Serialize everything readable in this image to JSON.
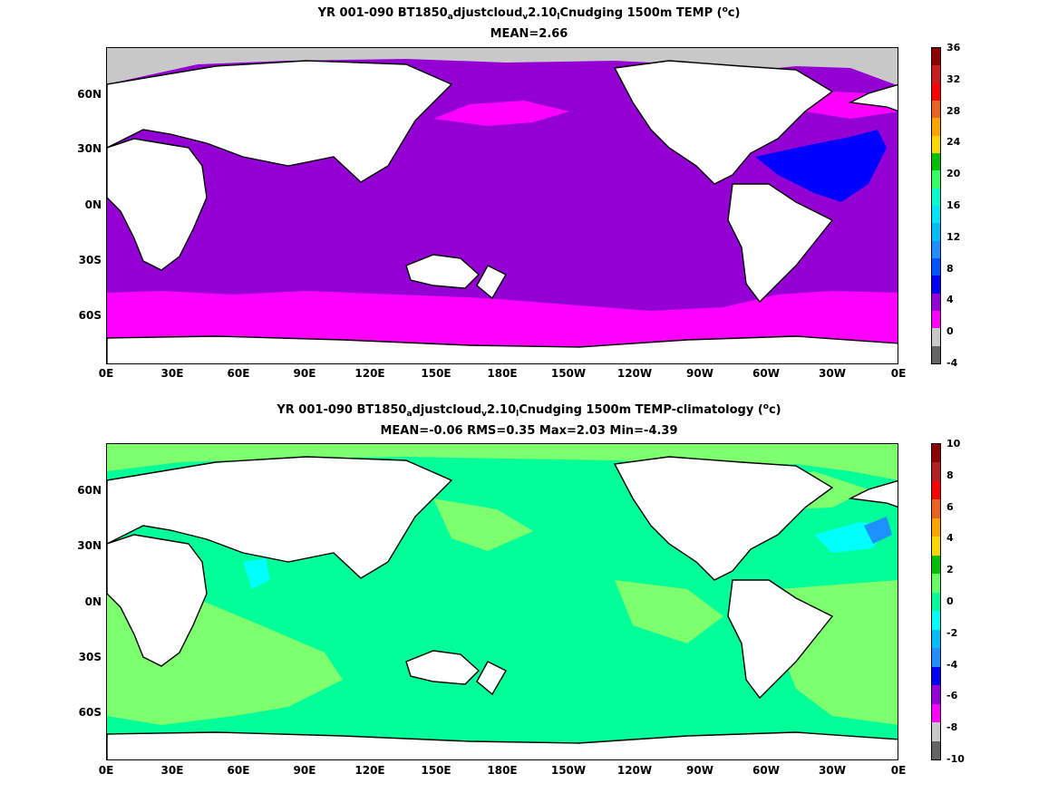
{
  "panel1": {
    "title_parts": [
      "YR 001-090 BT1850",
      "a",
      "djustcloud",
      "v",
      "2.10",
      "l",
      "Cnudging 1500m TEMP (",
      "o",
      "c)"
    ],
    "subtitle": "MEAN=2.66",
    "colorbar_labels": [
      "36",
      "32",
      "28",
      "24",
      "20",
      "16",
      "12",
      "8",
      "4",
      "0",
      "-4"
    ],
    "colorbar_colors": [
      "#8b0000",
      "#c81e1e",
      "#ff0000",
      "#e86420",
      "#ffa500",
      "#ffd700",
      "#00c000",
      "#33ff66",
      "#00ffcc",
      "#00e5ff",
      "#00bfff",
      "#1e90ff",
      "#0050ff",
      "#0000ff",
      "#9400d3",
      "#ff00ff",
      "#c8c8c8",
      "#646464"
    ]
  },
  "panel2": {
    "title_parts": [
      "YR 001-090 BT1850",
      "a",
      "djustcloud",
      "v",
      "2.10",
      "l",
      "Cnudging 1500m TEMP-climatology (",
      "o",
      "c)"
    ],
    "subtitle": "MEAN=-0.06   RMS=0.35   Max=2.03   Min=-4.39",
    "colorbar_labels": [
      "10",
      "8",
      "6",
      "4",
      "2",
      "0",
      "-2",
      "-4",
      "-6",
      "-8",
      "-10"
    ],
    "colorbar_colors": [
      "#8b0000",
      "#b22222",
      "#ff0000",
      "#e86420",
      "#ffa500",
      "#ffd700",
      "#00c000",
      "#66ff66",
      "#00ff99",
      "#00ffff",
      "#00bfff",
      "#1e90ff",
      "#0000ff",
      "#9400d3",
      "#ff00ff",
      "#c8c8c8",
      "#646464"
    ]
  },
  "x_ticks": [
    "0E",
    "30E",
    "60E",
    "90E",
    "120E",
    "150E",
    "180E",
    "150W",
    "120W",
    "90W",
    "60W",
    "30W",
    "0E"
  ],
  "y_ticks": [
    "60N",
    "30N",
    "0N",
    "30S",
    "60S"
  ],
  "colors": {
    "panel1_ocean": "#9400d3",
    "panel1_southern": "#ff00ff",
    "panel1_atlantic": "#0000ff",
    "panel1_ice": "#c8c8c8",
    "panel2_main": "#00ff99",
    "panel2_light": "#7dff6e",
    "panel2_cyan": "#00ffff",
    "panel2_blue": "#1e90ff",
    "land": "#ffffff",
    "coast": "#000000"
  }
}
